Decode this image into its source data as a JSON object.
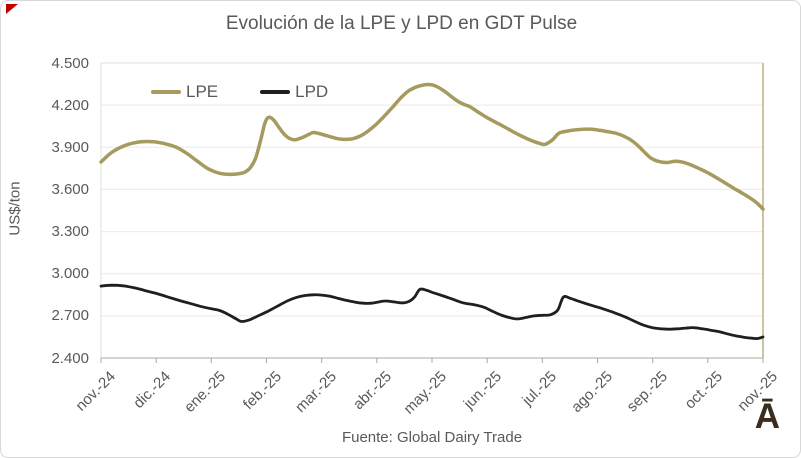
{
  "title": "Evolución de la LPE y LPD en GDT Pulse",
  "y_axis": {
    "label": "US$/ton",
    "tick_labels": [
      "4.500",
      "4.200",
      "3.900",
      "3.600",
      "3.300",
      "3.000",
      "2.700",
      "2.400"
    ],
    "ticks": [
      4500,
      4200,
      3900,
      3600,
      3300,
      3000,
      2700,
      2400
    ]
  },
  "x_axis": {
    "tick_labels": [
      "nov.-24",
      "dic.-24",
      "ene.-25",
      "feb.-25",
      "mar.-25",
      "abr.-25",
      "may.-25",
      "jun.-25",
      "jul.-25",
      "ago.-25",
      "sep.-25",
      "oct.-25",
      "nov.-25"
    ]
  },
  "legend": {
    "items": [
      {
        "label": "LPE",
        "color": "#A69B5E",
        "thickness": 4.5
      },
      {
        "label": "LPD",
        "color": "#1F1F1F",
        "thickness": 3.5
      }
    ]
  },
  "footer": {
    "source": "Fuente: Global Dairy Trade"
  },
  "logo": {
    "text": "Ā",
    "color": "#3A2C1E"
  },
  "colors": {
    "lpe_line": "#A69B5E",
    "lpd_line": "#1F1F1F",
    "text": "#595959",
    "gridline": "#EAEAEA",
    "axis": "#A8A8A8",
    "plot_border": "#E2E0D6",
    "plot_border_right": "#B3AA79",
    "corner_mark": "#C00000",
    "background": "#FFFFFF"
  },
  "chart_data": {
    "type": "line",
    "title": "Evolución de la LPE y LPD en GDT Pulse",
    "xlabel": "",
    "ylabel": "US$/ton",
    "ylim": [
      2400,
      4500
    ],
    "y_step": 300,
    "grid": "horizontal",
    "legend_position": "top-left-inside",
    "x_unit": "months, 0 = nov-24 .. 12 = nov-25 (weekly GDT Pulse events)",
    "categories": [
      "nov.-24",
      "dic.-24",
      "ene.-25",
      "feb.-25",
      "mar.-25",
      "abr.-25",
      "may.-25",
      "jun.-25",
      "jul.-25",
      "ago.-25",
      "sep.-25",
      "oct.-25",
      "nov.-25"
    ],
    "series": [
      {
        "name": "LPE",
        "color": "#A69B5E",
        "points": [
          [
            0,
            3795
          ],
          [
            0.2,
            3865
          ],
          [
            0.45,
            3915
          ],
          [
            0.7,
            3938
          ],
          [
            0.95,
            3940
          ],
          [
            1.15,
            3926
          ],
          [
            1.35,
            3903
          ],
          [
            1.55,
            3858
          ],
          [
            1.75,
            3800
          ],
          [
            1.95,
            3745
          ],
          [
            2.15,
            3715
          ],
          [
            2.35,
            3707
          ],
          [
            2.5,
            3712
          ],
          [
            2.6,
            3722
          ],
          [
            2.7,
            3752
          ],
          [
            2.8,
            3820
          ],
          [
            2.9,
            3960
          ],
          [
            2.97,
            4070
          ],
          [
            3.03,
            4112
          ],
          [
            3.12,
            4098
          ],
          [
            3.22,
            4045
          ],
          [
            3.32,
            3993
          ],
          [
            3.42,
            3962
          ],
          [
            3.52,
            3953
          ],
          [
            3.64,
            3968
          ],
          [
            3.76,
            3990
          ],
          [
            3.85,
            4005
          ],
          [
            3.95,
            3998
          ],
          [
            4.1,
            3982
          ],
          [
            4.25,
            3965
          ],
          [
            4.4,
            3956
          ],
          [
            4.55,
            3960
          ],
          [
            4.7,
            3980
          ],
          [
            4.85,
            4018
          ],
          [
            5.0,
            4068
          ],
          [
            5.15,
            4128
          ],
          [
            5.3,
            4192
          ],
          [
            5.45,
            4258
          ],
          [
            5.6,
            4308
          ],
          [
            5.78,
            4338
          ],
          [
            5.95,
            4347
          ],
          [
            6.1,
            4330
          ],
          [
            6.25,
            4292
          ],
          [
            6.42,
            4240
          ],
          [
            6.55,
            4210
          ],
          [
            6.68,
            4190
          ],
          [
            6.82,
            4155
          ],
          [
            6.97,
            4118
          ],
          [
            7.12,
            4085
          ],
          [
            7.28,
            4052
          ],
          [
            7.45,
            4015
          ],
          [
            7.62,
            3980
          ],
          [
            7.8,
            3948
          ],
          [
            7.95,
            3928
          ],
          [
            8.05,
            3921
          ],
          [
            8.18,
            3952
          ],
          [
            8.3,
            4000
          ],
          [
            8.45,
            4015
          ],
          [
            8.6,
            4024
          ],
          [
            8.75,
            4029
          ],
          [
            8.9,
            4028
          ],
          [
            9.05,
            4020
          ],
          [
            9.2,
            4010
          ],
          [
            9.35,
            3998
          ],
          [
            9.5,
            3975
          ],
          [
            9.63,
            3945
          ],
          [
            9.75,
            3905
          ],
          [
            9.87,
            3858
          ],
          [
            9.98,
            3820
          ],
          [
            10.1,
            3800
          ],
          [
            10.25,
            3792
          ],
          [
            10.42,
            3800
          ],
          [
            10.58,
            3790
          ],
          [
            10.72,
            3770
          ],
          [
            10.88,
            3742
          ],
          [
            11.03,
            3712
          ],
          [
            11.18,
            3678
          ],
          [
            11.33,
            3642
          ],
          [
            11.48,
            3606
          ],
          [
            11.63,
            3572
          ],
          [
            11.78,
            3535
          ],
          [
            11.9,
            3500
          ],
          [
            12,
            3460
          ]
        ]
      },
      {
        "name": "LPD",
        "color": "#1F1F1F",
        "points": [
          [
            0,
            2912
          ],
          [
            0.2,
            2918
          ],
          [
            0.4,
            2914
          ],
          [
            0.6,
            2900
          ],
          [
            0.8,
            2880
          ],
          [
            1.0,
            2860
          ],
          [
            1.2,
            2836
          ],
          [
            1.4,
            2812
          ],
          [
            1.6,
            2790
          ],
          [
            1.8,
            2768
          ],
          [
            2.0,
            2750
          ],
          [
            2.15,
            2738
          ],
          [
            2.3,
            2712
          ],
          [
            2.45,
            2678
          ],
          [
            2.55,
            2660
          ],
          [
            2.68,
            2670
          ],
          [
            2.82,
            2695
          ],
          [
            2.95,
            2718
          ],
          [
            3.1,
            2748
          ],
          [
            3.25,
            2780
          ],
          [
            3.4,
            2810
          ],
          [
            3.55,
            2832
          ],
          [
            3.7,
            2845
          ],
          [
            3.85,
            2850
          ],
          [
            4.0,
            2848
          ],
          [
            4.15,
            2840
          ],
          [
            4.3,
            2824
          ],
          [
            4.45,
            2810
          ],
          [
            4.6,
            2798
          ],
          [
            4.75,
            2790
          ],
          [
            4.9,
            2790
          ],
          [
            5.02,
            2798
          ],
          [
            5.15,
            2806
          ],
          [
            5.3,
            2800
          ],
          [
            5.45,
            2792
          ],
          [
            5.58,
            2802
          ],
          [
            5.68,
            2832
          ],
          [
            5.78,
            2888
          ],
          [
            5.9,
            2882
          ],
          [
            6.02,
            2865
          ],
          [
            6.18,
            2845
          ],
          [
            6.35,
            2822
          ],
          [
            6.5,
            2800
          ],
          [
            6.62,
            2788
          ],
          [
            6.78,
            2778
          ],
          [
            6.95,
            2760
          ],
          [
            7.1,
            2732
          ],
          [
            7.25,
            2706
          ],
          [
            7.42,
            2686
          ],
          [
            7.55,
            2678
          ],
          [
            7.7,
            2688
          ],
          [
            7.85,
            2700
          ],
          [
            8.0,
            2704
          ],
          [
            8.15,
            2708
          ],
          [
            8.28,
            2742
          ],
          [
            8.38,
            2833
          ],
          [
            8.5,
            2826
          ],
          [
            8.65,
            2805
          ],
          [
            8.8,
            2786
          ],
          [
            8.95,
            2768
          ],
          [
            9.1,
            2750
          ],
          [
            9.25,
            2730
          ],
          [
            9.4,
            2708
          ],
          [
            9.55,
            2684
          ],
          [
            9.7,
            2656
          ],
          [
            9.85,
            2632
          ],
          [
            10.0,
            2616
          ],
          [
            10.15,
            2608
          ],
          [
            10.3,
            2605
          ],
          [
            10.45,
            2608
          ],
          [
            10.6,
            2613
          ],
          [
            10.75,
            2616
          ],
          [
            10.9,
            2608
          ],
          [
            11.05,
            2598
          ],
          [
            11.2,
            2588
          ],
          [
            11.35,
            2572
          ],
          [
            11.5,
            2558
          ],
          [
            11.65,
            2548
          ],
          [
            11.8,
            2541
          ],
          [
            11.9,
            2539
          ],
          [
            12,
            2550
          ]
        ]
      }
    ]
  }
}
